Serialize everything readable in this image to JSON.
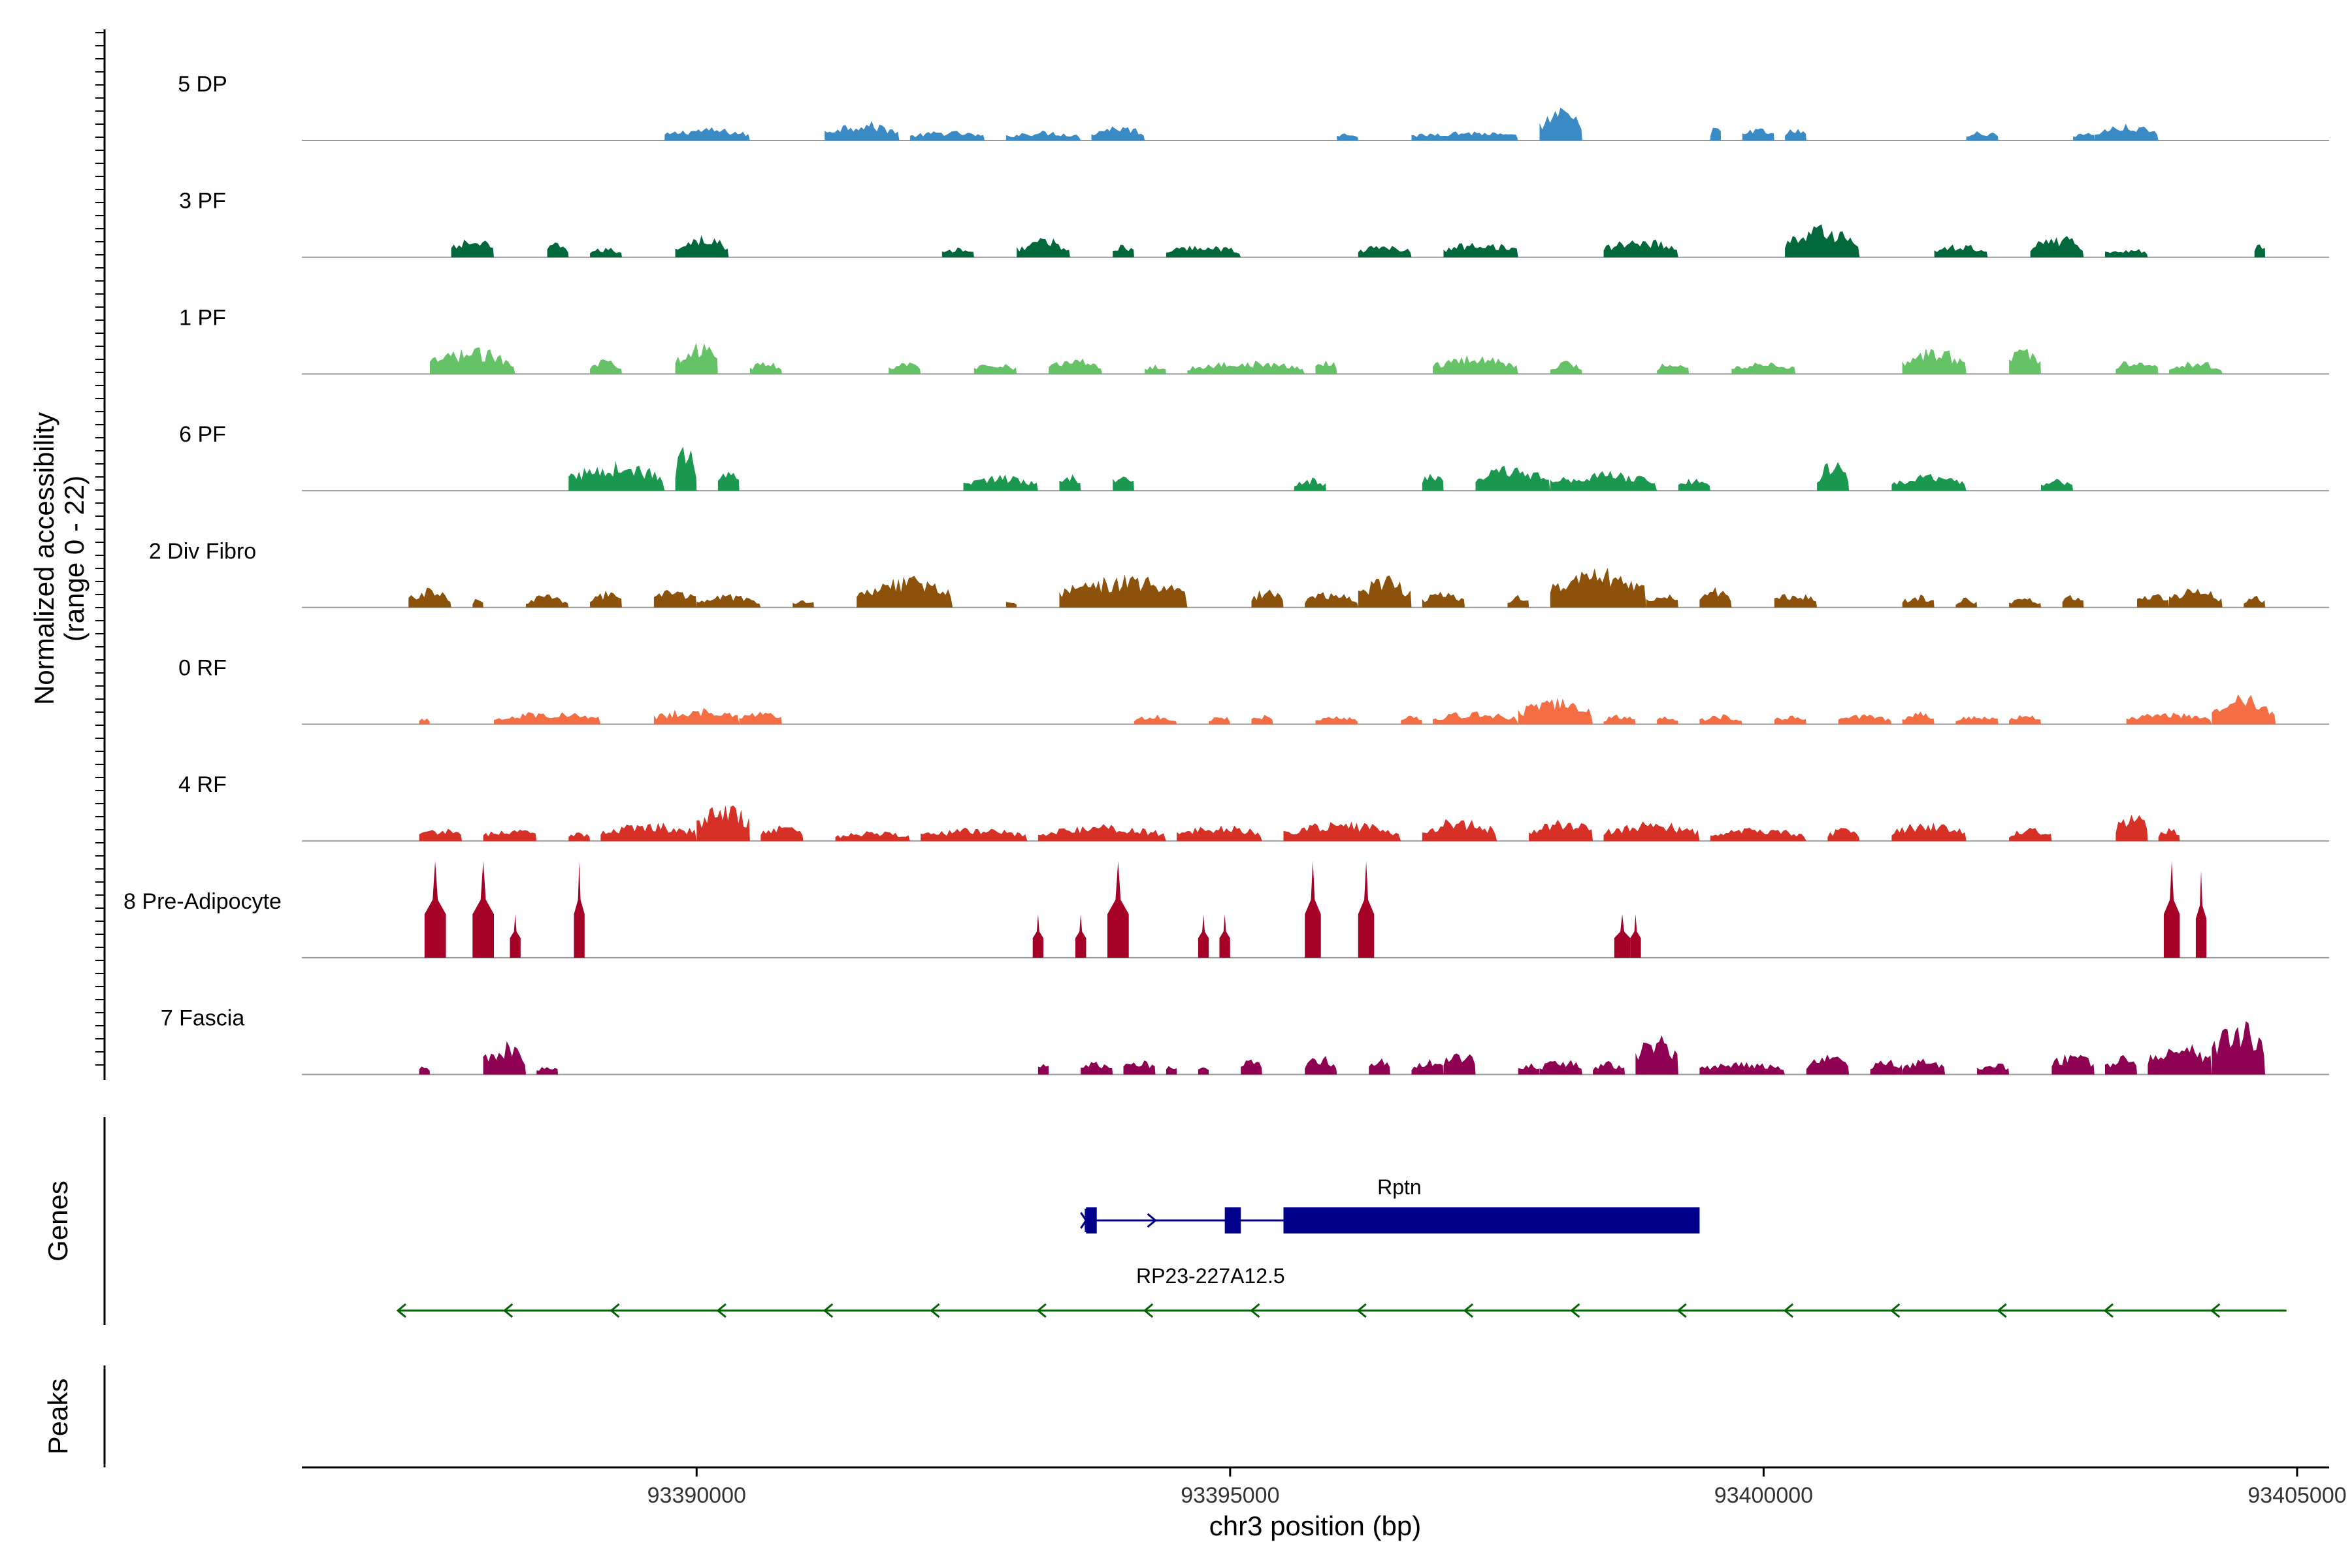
{
  "chart_data": {
    "type": "area",
    "title": "",
    "xlabel": "chr3 position (bp)",
    "ylabel": "Normalized accessibility\n(range 0 - 22)",
    "xlim": [
      93386300,
      93405300
    ],
    "ylim": [
      0,
      22
    ],
    "xticks": [
      93390000,
      93395000,
      93400000,
      93405000
    ],
    "xtick_labels": [
      "93390000",
      "93395000",
      "93400000",
      "93405000"
    ],
    "grid": false,
    "series": [
      {
        "name": "5 DP",
        "color": "#3a8ac6",
        "amplitude": 0.35,
        "regions": [
          [
            93389700,
            93390500,
            0.4
          ],
          [
            93391200,
            93391900,
            0.6
          ],
          [
            93392000,
            93392700,
            0.3
          ],
          [
            93392900,
            93393600,
            0.3
          ],
          [
            93393700,
            93394200,
            0.5
          ],
          [
            93396000,
            93396200,
            0.3
          ],
          [
            93396700,
            93397700,
            0.3
          ],
          [
            93397900,
            93398300,
            1.0
          ],
          [
            93399500,
            93399600,
            0.5
          ],
          [
            93399800,
            93400100,
            0.4
          ],
          [
            93400200,
            93400400,
            0.4
          ],
          [
            93401900,
            93402200,
            0.3
          ],
          [
            93402900,
            93403100,
            0.3
          ],
          [
            93403100,
            93403700,
            0.5
          ]
        ]
      },
      {
        "name": "3 PF",
        "color": "#00683a",
        "amplitude": 0.35,
        "regions": [
          [
            93387700,
            93388100,
            0.6
          ],
          [
            93388600,
            93388800,
            0.5
          ],
          [
            93389000,
            93389300,
            0.3
          ],
          [
            93389800,
            93390300,
            0.7
          ],
          [
            93392300,
            93392600,
            0.3
          ],
          [
            93393000,
            93393500,
            0.6
          ],
          [
            93393900,
            93394100,
            0.4
          ],
          [
            93394400,
            93395100,
            0.4
          ],
          [
            93396200,
            93396700,
            0.4
          ],
          [
            93397000,
            93397700,
            0.5
          ],
          [
            93398500,
            93399200,
            0.6
          ],
          [
            93400200,
            93400900,
            1.0
          ],
          [
            93401600,
            93402100,
            0.4
          ],
          [
            93402500,
            93403000,
            0.7
          ],
          [
            93403200,
            93403600,
            0.3
          ],
          [
            93404600,
            93404700,
            0.5
          ]
        ]
      },
      {
        "name": "1 PF",
        "color": "#66c266",
        "amplitude": 0.35,
        "regions": [
          [
            93387500,
            93388300,
            0.8
          ],
          [
            93389000,
            93389300,
            0.5
          ],
          [
            93389800,
            93390200,
            1.0
          ],
          [
            93390500,
            93390800,
            0.4
          ],
          [
            93391800,
            93392100,
            0.4
          ],
          [
            93392600,
            93393000,
            0.4
          ],
          [
            93393300,
            93393800,
            0.5
          ],
          [
            93394200,
            93394400,
            0.3
          ],
          [
            93394600,
            93395700,
            0.4
          ],
          [
            93395800,
            93396000,
            0.5
          ],
          [
            93396900,
            93397700,
            0.6
          ],
          [
            93398000,
            93398300,
            0.4
          ],
          [
            93399000,
            93399300,
            0.4
          ],
          [
            93399700,
            93400300,
            0.4
          ],
          [
            93401300,
            93401900,
            0.8
          ],
          [
            93402300,
            93402600,
            0.9
          ],
          [
            93403300,
            93403700,
            0.5
          ],
          [
            93403800,
            93404300,
            0.4
          ]
        ]
      },
      {
        "name": "6 PF",
        "color": "#1a9850",
        "amplitude": 0.35,
        "regions": [
          [
            93388800,
            93389700,
            0.9
          ],
          [
            93389800,
            93390000,
            1.4
          ],
          [
            93390200,
            93390400,
            0.6
          ],
          [
            93392500,
            93393200,
            0.5
          ],
          [
            93393400,
            93393600,
            0.6
          ],
          [
            93393900,
            93394100,
            0.7
          ],
          [
            93395600,
            93395900,
            0.4
          ],
          [
            93396800,
            93397000,
            0.6
          ],
          [
            93397300,
            93398000,
            0.8
          ],
          [
            93398000,
            93399000,
            0.6
          ],
          [
            93399200,
            93399500,
            0.4
          ],
          [
            93400500,
            93400800,
            0.9
          ],
          [
            93401200,
            93401900,
            0.5
          ],
          [
            93402600,
            93402900,
            0.4
          ]
        ]
      },
      {
        "name": "2 Div Fibro",
        "color": "#8c510a",
        "amplitude": 0.35,
        "regions": [
          [
            93387300,
            93387700,
            0.6
          ],
          [
            93387900,
            93388000,
            0.3
          ],
          [
            93388400,
            93388800,
            0.4
          ],
          [
            93389000,
            93389300,
            0.5
          ],
          [
            93389600,
            93390000,
            0.6
          ],
          [
            93390000,
            93390600,
            0.4
          ],
          [
            93390900,
            93391100,
            0.3
          ],
          [
            93391500,
            93392400,
            1.0
          ],
          [
            93392900,
            93393000,
            0.3
          ],
          [
            93393400,
            93394600,
            1.0
          ],
          [
            93395200,
            93395500,
            0.6
          ],
          [
            93395700,
            93396200,
            0.5
          ],
          [
            93396200,
            93396700,
            1.0
          ],
          [
            93396800,
            93397200,
            0.5
          ],
          [
            93397600,
            93397800,
            0.4
          ],
          [
            93398000,
            93398900,
            1.2
          ],
          [
            93398900,
            93399200,
            0.5
          ],
          [
            93399400,
            93399700,
            0.7
          ],
          [
            93400100,
            93400500,
            0.5
          ],
          [
            93401300,
            93401600,
            0.4
          ],
          [
            93401800,
            93402000,
            0.3
          ],
          [
            93402300,
            93402600,
            0.3
          ],
          [
            93402800,
            93403000,
            0.4
          ],
          [
            93403500,
            93403800,
            0.5
          ],
          [
            93403800,
            93404300,
            0.6
          ],
          [
            93404500,
            93404700,
            0.4
          ]
        ]
      },
      {
        "name": "0 RF",
        "color": "#f46d43",
        "amplitude": 0.35,
        "regions": [
          [
            93387400,
            93387500,
            0.2
          ],
          [
            93388100,
            93389100,
            0.4
          ],
          [
            93389600,
            93390400,
            0.5
          ],
          [
            93390400,
            93390800,
            0.4
          ],
          [
            93394100,
            93394500,
            0.3
          ],
          [
            93394800,
            93395000,
            0.3
          ],
          [
            93395200,
            93395400,
            0.3
          ],
          [
            93395800,
            93396200,
            0.3
          ],
          [
            93396600,
            93396800,
            0.3
          ],
          [
            93396900,
            93397700,
            0.4
          ],
          [
            93397700,
            93398400,
            0.8
          ],
          [
            93398500,
            93398800,
            0.3
          ],
          [
            93399000,
            93399200,
            0.3
          ],
          [
            93399400,
            93399800,
            0.3
          ],
          [
            93400100,
            93400400,
            0.3
          ],
          [
            93400700,
            93401200,
            0.3
          ],
          [
            93401300,
            93401600,
            0.4
          ],
          [
            93401800,
            93402200,
            0.3
          ],
          [
            93402300,
            93402600,
            0.3
          ],
          [
            93403400,
            93404200,
            0.4
          ],
          [
            93404200,
            93404800,
            0.9
          ]
        ]
      },
      {
        "name": "4 RF",
        "color": "#d73027",
        "amplitude": 0.35,
        "regions": [
          [
            93387400,
            93387800,
            0.4
          ],
          [
            93388000,
            93388500,
            0.4
          ],
          [
            93388800,
            93389000,
            0.3
          ],
          [
            93389100,
            93390000,
            0.6
          ],
          [
            93390000,
            93390500,
            1.2
          ],
          [
            93390600,
            93391000,
            0.5
          ],
          [
            93391300,
            93392000,
            0.3
          ],
          [
            93392100,
            93393100,
            0.4
          ],
          [
            93393200,
            93394400,
            0.5
          ],
          [
            93394500,
            93395300,
            0.5
          ],
          [
            93395500,
            93396600,
            0.6
          ],
          [
            93396800,
            93397500,
            0.7
          ],
          [
            93397800,
            93398400,
            0.7
          ],
          [
            93398500,
            93399400,
            0.6
          ],
          [
            93399500,
            93400400,
            0.4
          ],
          [
            93400600,
            93400900,
            0.4
          ],
          [
            93401200,
            93401900,
            0.6
          ],
          [
            93402300,
            93402700,
            0.4
          ],
          [
            93403300,
            93403600,
            0.9
          ],
          [
            93403700,
            93403900,
            0.4
          ]
        ]
      },
      {
        "name": "8 Pre-Adipocyte",
        "color": "#a50026",
        "amplitude": 1.0,
        "regions": [
          [
            93387450,
            93387650,
            1.0
          ],
          [
            93387900,
            93388100,
            1.0
          ],
          [
            93388250,
            93388350,
            0.45
          ],
          [
            93388850,
            93388950,
            1.0
          ],
          [
            93393150,
            93393250,
            0.45
          ],
          [
            93393550,
            93393650,
            0.45
          ],
          [
            93393850,
            93394050,
            1.0
          ],
          [
            93394700,
            93394800,
            0.45
          ],
          [
            93394900,
            93395000,
            0.45
          ],
          [
            93395700,
            93395850,
            1.0
          ],
          [
            93396200,
            93396350,
            1.0
          ],
          [
            93398600,
            93398750,
            0.45
          ],
          [
            93398750,
            93398850,
            0.45
          ],
          [
            93403750,
            93403900,
            1.0
          ],
          [
            93404050,
            93404150,
            0.9
          ]
        ]
      },
      {
        "name": "7 Fascia",
        "color": "#8e0152",
        "amplitude": 0.35,
        "regions": [
          [
            93387400,
            93387500,
            0.3
          ],
          [
            93388000,
            93388400,
            1.0
          ],
          [
            93388500,
            93388700,
            0.3
          ],
          [
            93393200,
            93393300,
            0.5
          ],
          [
            93393600,
            93393900,
            0.4
          ],
          [
            93394000,
            93394300,
            0.5
          ],
          [
            93394400,
            93394500,
            0.4
          ],
          [
            93394700,
            93394800,
            0.4
          ],
          [
            93395100,
            93395300,
            0.5
          ],
          [
            93395700,
            93396000,
            0.6
          ],
          [
            93396300,
            93396500,
            0.6
          ],
          [
            93396700,
            93397000,
            0.5
          ],
          [
            93397000,
            93397300,
            0.8
          ],
          [
            93397700,
            93397900,
            0.4
          ],
          [
            93397900,
            93398300,
            0.5
          ],
          [
            93398400,
            93398700,
            0.4
          ],
          [
            93398800,
            93399200,
            1.2
          ],
          [
            93399400,
            93400200,
            0.4
          ],
          [
            93400400,
            93400800,
            0.6
          ],
          [
            93401000,
            93401300,
            0.5
          ],
          [
            93401300,
            93401700,
            0.5
          ],
          [
            93402000,
            93402300,
            0.4
          ],
          [
            93402700,
            93403100,
            0.7
          ],
          [
            93403200,
            93403500,
            0.6
          ],
          [
            93403600,
            93404200,
            1.0
          ],
          [
            93404200,
            93404700,
            1.7
          ]
        ]
      }
    ],
    "panels": [
      "Normalized accessibility (range 0 - 22)",
      "Genes",
      "Peaks"
    ],
    "genes": [
      {
        "name": "Rptn",
        "strand": "+",
        "start": 93393650,
        "end": 93399400,
        "color": "#00008b",
        "exons": [
          [
            93393650,
            93393750
          ],
          [
            93394950,
            93395100
          ],
          [
            93395500,
            93399400
          ]
        ],
        "intron_arrows": [
          93394300
        ]
      },
      {
        "name": "RP23-227A12.5",
        "strand": "-",
        "start": 93387200,
        "end": 93404900,
        "color": "#006400",
        "exons": [],
        "intron_arrows": [
          93387200,
          93388200,
          93389200,
          93390200,
          93391200,
          93392200,
          93393200,
          93394200,
          93395200,
          93396200,
          93397200,
          93398200,
          93399200,
          93400200,
          93401200,
          93402200,
          93403200,
          93404200
        ]
      }
    ]
  }
}
